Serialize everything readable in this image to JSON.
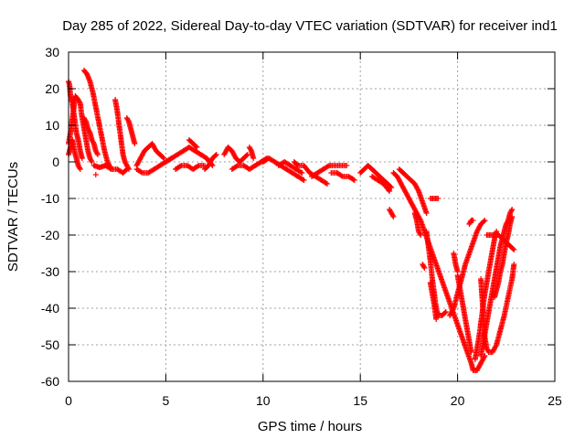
{
  "chart_data": {
    "type": "scatter",
    "title": "Day 285 of 2022, Sidereal Day-to-day VTEC variation (SDTVAR) for receiver ind1",
    "xlabel": "GPS time / hours",
    "ylabel": "SDTVAR / TECUs",
    "xlim": [
      0,
      25
    ],
    "ylim": [
      -60,
      30
    ],
    "xticks": [
      0,
      5,
      10,
      15,
      20,
      25
    ],
    "yticks": [
      -60,
      -50,
      -40,
      -30,
      -20,
      -10,
      0,
      10,
      20,
      30
    ],
    "grid": true,
    "marker": "+",
    "color": "#ff0000",
    "segments": [
      [
        [
          0.0,
          5
        ],
        [
          0.1,
          8
        ],
        [
          0.2,
          12
        ],
        [
          0.35,
          18
        ],
        [
          0.5,
          17
        ],
        [
          0.6,
          16
        ],
        [
          0.7,
          12
        ],
        [
          0.8,
          9
        ],
        [
          0.9,
          6
        ],
        [
          1.0,
          3
        ],
        [
          1.1,
          1
        ],
        [
          1.2,
          0
        ]
      ],
      [
        [
          0.0,
          22
        ],
        [
          0.05,
          21
        ],
        [
          0.1,
          18
        ],
        [
          0.2,
          16
        ],
        [
          0.3,
          12
        ],
        [
          0.4,
          8
        ],
        [
          0.5,
          6
        ],
        [
          0.6,
          3
        ],
        [
          0.7,
          1
        ]
      ],
      [
        [
          0.0,
          2
        ],
        [
          0.1,
          4
        ],
        [
          0.2,
          6
        ],
        [
          0.3,
          3
        ],
        [
          0.4,
          1
        ],
        [
          0.5,
          -1
        ],
        [
          0.6,
          -2
        ]
      ],
      [
        [
          0.8,
          12
        ],
        [
          0.9,
          11
        ],
        [
          1.0,
          9
        ],
        [
          1.1,
          8
        ],
        [
          1.2,
          6
        ],
        [
          1.3,
          5
        ],
        [
          1.4,
          3
        ],
        [
          1.5,
          2
        ]
      ],
      [
        [
          0.8,
          25
        ],
        [
          0.95,
          24
        ],
        [
          1.1,
          22
        ],
        [
          1.25,
          19
        ],
        [
          1.4,
          15
        ],
        [
          1.55,
          11
        ],
        [
          1.7,
          7
        ],
        [
          1.85,
          3
        ],
        [
          2.0,
          0
        ],
        [
          2.2,
          -2
        ]
      ],
      [
        [
          1.3,
          -1
        ],
        [
          1.6,
          -1.5
        ],
        [
          1.9,
          -1
        ],
        [
          2.2,
          -2
        ],
        [
          2.5,
          -2
        ],
        [
          2.8,
          -3
        ],
        [
          3.0,
          -2
        ]
      ],
      [
        [
          1.4,
          -3.5
        ]
      ],
      [
        [
          2.4,
          17
        ],
        [
          2.5,
          14
        ],
        [
          2.6,
          10
        ],
        [
          2.7,
          6
        ],
        [
          2.8,
          2
        ],
        [
          2.9,
          0
        ],
        [
          3.0,
          -1
        ],
        [
          3.1,
          -2
        ]
      ],
      [
        [
          3.0,
          12
        ],
        [
          3.1,
          11
        ],
        [
          3.2,
          9
        ],
        [
          3.3,
          7
        ],
        [
          3.4,
          5
        ]
      ],
      [
        [
          3.5,
          -1
        ],
        [
          3.7,
          1
        ],
        [
          3.9,
          3
        ],
        [
          4.1,
          4
        ],
        [
          4.3,
          5
        ],
        [
          4.5,
          3
        ],
        [
          4.7,
          2
        ],
        [
          4.9,
          1
        ]
      ],
      [
        [
          3.5,
          -2
        ],
        [
          3.8,
          -3
        ],
        [
          4.1,
          -3
        ],
        [
          4.4,
          -2
        ],
        [
          4.7,
          -1
        ],
        [
          5.0,
          0
        ],
        [
          5.3,
          1
        ]
      ],
      [
        [
          5.0,
          0
        ],
        [
          5.3,
          1
        ],
        [
          5.6,
          2
        ],
        [
          5.9,
          3
        ],
        [
          6.2,
          4
        ],
        [
          6.5,
          3
        ],
        [
          6.8,
          2
        ],
        [
          7.1,
          1
        ],
        [
          7.4,
          -1
        ]
      ],
      [
        [
          5.5,
          -2
        ],
        [
          5.8,
          -1
        ],
        [
          6.1,
          -1
        ],
        [
          6.4,
          -2
        ],
        [
          6.7,
          -1
        ],
        [
          7.0,
          -1
        ]
      ],
      [
        [
          6.2,
          6
        ],
        [
          6.4,
          5
        ],
        [
          6.6,
          4
        ]
      ],
      [
        [
          7.0,
          -2
        ],
        [
          7.2,
          -1
        ],
        [
          7.4,
          1
        ],
        [
          7.6,
          2
        ]
      ],
      [
        [
          8.0,
          2
        ],
        [
          8.2,
          4
        ],
        [
          8.4,
          3
        ],
        [
          8.6,
          1
        ],
        [
          8.8,
          0
        ],
        [
          9.0,
          1
        ],
        [
          9.2,
          2
        ]
      ],
      [
        [
          8.4,
          -2
        ],
        [
          8.7,
          -1
        ],
        [
          9.0,
          -1
        ],
        [
          9.3,
          -2
        ],
        [
          9.6,
          -1
        ],
        [
          9.9,
          0
        ],
        [
          10.2,
          1
        ]
      ],
      [
        [
          9.3,
          4
        ],
        [
          9.4,
          3
        ],
        [
          9.5,
          1
        ]
      ],
      [
        [
          10.0,
          0
        ],
        [
          10.3,
          1
        ],
        [
          10.6,
          0
        ],
        [
          10.9,
          -1
        ],
        [
          11.2,
          -2
        ],
        [
          11.5,
          -3
        ],
        [
          11.8,
          -4
        ],
        [
          12.1,
          -5
        ]
      ],
      [
        [
          10.8,
          -1
        ],
        [
          11.1,
          0
        ],
        [
          11.4,
          -1
        ],
        [
          11.7,
          -2
        ],
        [
          12.0,
          -3
        ]
      ],
      [
        [
          11.6,
          0
        ],
        [
          11.8,
          -1
        ],
        [
          12.1,
          -1
        ],
        [
          12.4,
          -3
        ],
        [
          12.7,
          -4
        ],
        [
          13.0,
          -5
        ],
        [
          13.3,
          -6
        ]
      ],
      [
        [
          12.5,
          -4
        ],
        [
          12.8,
          -3
        ],
        [
          13.1,
          -2
        ],
        [
          13.4,
          -1
        ],
        [
          13.7,
          -1
        ],
        [
          14.0,
          -1
        ],
        [
          14.3,
          -1
        ]
      ],
      [
        [
          13.5,
          -3
        ],
        [
          13.8,
          -3
        ],
        [
          14.1,
          -4
        ],
        [
          14.4,
          -4
        ],
        [
          14.7,
          -5
        ]
      ],
      [
        [
          15.0,
          -3
        ],
        [
          15.2,
          -2
        ],
        [
          15.4,
          -1
        ],
        [
          15.6,
          -2
        ],
        [
          15.8,
          -3
        ],
        [
          16.0,
          -4
        ],
        [
          16.2,
          -5
        ],
        [
          16.4,
          -6
        ],
        [
          16.6,
          -7
        ]
      ],
      [
        [
          15.6,
          -4
        ],
        [
          15.9,
          -5
        ],
        [
          16.2,
          -6
        ],
        [
          16.5,
          -8
        ]
      ],
      [
        [
          16.5,
          -13
        ],
        [
          16.6,
          -14
        ],
        [
          16.7,
          -15
        ]
      ],
      [
        [
          16.7,
          -3
        ],
        [
          16.9,
          -4
        ],
        [
          17.1,
          -6
        ],
        [
          17.3,
          -8
        ],
        [
          17.5,
          -10
        ],
        [
          17.7,
          -12
        ],
        [
          17.9,
          -14
        ],
        [
          18.1,
          -16
        ],
        [
          18.3,
          -19
        ],
        [
          18.5,
          -22
        ],
        [
          18.7,
          -25
        ],
        [
          18.9,
          -28
        ],
        [
          19.1,
          -31
        ],
        [
          19.3,
          -34
        ],
        [
          19.5,
          -37
        ],
        [
          19.7,
          -40
        ],
        [
          19.9,
          -43
        ],
        [
          20.1,
          -46
        ],
        [
          20.3,
          -49
        ],
        [
          20.5,
          -52
        ],
        [
          20.7,
          -55
        ],
        [
          20.8,
          -57
        ],
        [
          21.0,
          -57
        ],
        [
          21.2,
          -55
        ],
        [
          21.4,
          -53
        ]
      ],
      [
        [
          17.0,
          -2
        ],
        [
          17.2,
          -3
        ],
        [
          17.4,
          -4
        ],
        [
          17.6,
          -5
        ],
        [
          17.8,
          -6
        ],
        [
          18.0,
          -8
        ],
        [
          18.2,
          -11
        ],
        [
          18.4,
          -14
        ]
      ],
      [
        [
          17.8,
          -14
        ],
        [
          17.9,
          -16
        ],
        [
          18.0,
          -19
        ],
        [
          18.1,
          -20
        ]
      ],
      [
        [
          18.2,
          -28
        ],
        [
          18.3,
          -29
        ]
      ],
      [
        [
          18.6,
          -10
        ],
        [
          18.8,
          -10
        ],
        [
          19.0,
          -10
        ]
      ],
      [
        [
          18.4,
          -19
        ],
        [
          18.5,
          -23
        ],
        [
          18.6,
          -27
        ],
        [
          18.7,
          -32
        ],
        [
          18.8,
          -36
        ],
        [
          18.9,
          -40
        ],
        [
          19.0,
          -42
        ],
        [
          19.2,
          -42
        ],
        [
          19.4,
          -41
        ]
      ],
      [
        [
          18.6,
          -33
        ],
        [
          18.7,
          -36
        ],
        [
          18.8,
          -39
        ],
        [
          18.9,
          -43
        ]
      ],
      [
        [
          19.6,
          -42
        ],
        [
          19.8,
          -40
        ],
        [
          20.0,
          -36
        ],
        [
          20.2,
          -32
        ],
        [
          20.4,
          -28
        ],
        [
          20.6,
          -25
        ],
        [
          20.8,
          -22
        ],
        [
          21.0,
          -19
        ],
        [
          21.2,
          -17
        ],
        [
          21.4,
          -16
        ]
      ],
      [
        [
          20.0,
          -31
        ],
        [
          20.1,
          -34
        ],
        [
          20.2,
          -37
        ],
        [
          20.3,
          -40
        ],
        [
          20.4,
          -43
        ],
        [
          20.5,
          -46
        ],
        [
          20.6,
          -49
        ],
        [
          20.7,
          -52
        ]
      ],
      [
        [
          19.8,
          -25
        ],
        [
          19.9,
          -28
        ],
        [
          20.0,
          -30
        ]
      ],
      [
        [
          20.6,
          -17
        ],
        [
          20.7,
          -16
        ],
        [
          20.8,
          -16
        ]
      ],
      [
        [
          21.2,
          -32
        ],
        [
          21.25,
          -36
        ],
        [
          21.3,
          -40
        ],
        [
          21.35,
          -44
        ],
        [
          21.4,
          -48
        ],
        [
          21.5,
          -51
        ],
        [
          21.6,
          -52
        ],
        [
          21.8,
          -52
        ],
        [
          22.0,
          -50
        ],
        [
          22.2,
          -46
        ],
        [
          22.4,
          -42
        ],
        [
          22.6,
          -37
        ],
        [
          22.8,
          -32
        ],
        [
          22.9,
          -28
        ]
      ],
      [
        [
          21.5,
          -20
        ],
        [
          21.7,
          -20
        ],
        [
          21.9,
          -20
        ],
        [
          22.1,
          -20
        ],
        [
          22.3,
          -21
        ],
        [
          22.5,
          -22
        ],
        [
          22.7,
          -23
        ],
        [
          22.9,
          -24
        ]
      ],
      [
        [
          21.2,
          -53
        ],
        [
          21.3,
          -50
        ],
        [
          21.4,
          -47
        ],
        [
          21.5,
          -44
        ],
        [
          21.6,
          -41
        ],
        [
          21.7,
          -38
        ],
        [
          21.8,
          -35
        ],
        [
          21.9,
          -32
        ],
        [
          22.0,
          -29
        ],
        [
          22.1,
          -26
        ],
        [
          22.2,
          -23
        ],
        [
          22.3,
          -21
        ],
        [
          22.4,
          -19
        ],
        [
          22.5,
          -17
        ],
        [
          22.6,
          -16
        ],
        [
          22.7,
          -14
        ],
        [
          22.8,
          -13
        ]
      ],
      [
        [
          21.9,
          -37
        ],
        [
          22.0,
          -35
        ],
        [
          22.1,
          -33
        ],
        [
          22.2,
          -30
        ],
        [
          22.3,
          -28
        ],
        [
          22.4,
          -25
        ],
        [
          22.5,
          -22
        ],
        [
          22.6,
          -20
        ],
        [
          22.7,
          -17
        ],
        [
          22.8,
          -15
        ]
      ],
      [
        [
          20.9,
          -54
        ],
        [
          21.0,
          -51
        ],
        [
          21.1,
          -48
        ],
        [
          21.2,
          -44
        ],
        [
          21.3,
          -40
        ],
        [
          21.4,
          -36
        ],
        [
          21.5,
          -33
        ],
        [
          21.6,
          -30
        ],
        [
          21.7,
          -27
        ],
        [
          21.8,
          -24
        ],
        [
          21.9,
          -21
        ],
        [
          22.0,
          -19
        ]
      ]
    ]
  }
}
